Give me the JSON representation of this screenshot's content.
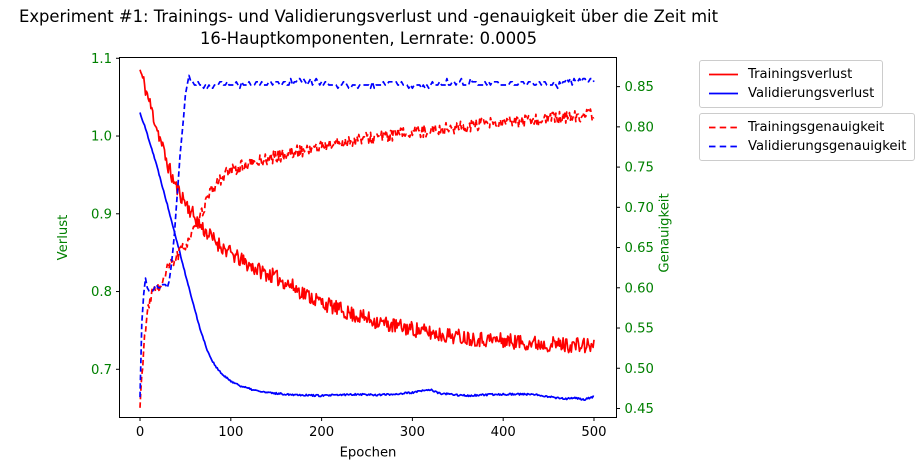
{
  "title": {
    "line1": "Experiment #1: Trainings- und Validierungsverlust und -genauigkeit über die Zeit mit",
    "line2": "16-Hauptkomponenten, Lernrate: 0.0005"
  },
  "colors": {
    "red": "#ff0000",
    "blue": "#0000ff",
    "axis_label_green": "#008000",
    "spine_black": "#000000",
    "legend_border_gray": "#cccccc"
  },
  "legends": [
    {
      "name": "loss-legend",
      "entries": [
        {
          "label": "Trainingsverlust",
          "color": "#ff0000",
          "dash": false
        },
        {
          "label": "Validierungsverlust",
          "color": "#0000ff",
          "dash": false
        }
      ]
    },
    {
      "name": "accuracy-legend",
      "entries": [
        {
          "label": "Trainingsgenauigkeit",
          "color": "#ff0000",
          "dash": true
        },
        {
          "label": "Validierungsgenauigkeit",
          "color": "#0000ff",
          "dash": true
        }
      ]
    }
  ],
  "chart_data": {
    "type": "line",
    "title": "Experiment #1: Trainings- und Validierungsverlust und -genauigkeit über die Zeit mit 16-Hauptkomponenten, Lernrate: 0.0005",
    "xlabel": "Epochen",
    "ylabel_left": "Verlust",
    "ylabel_right": "Genauigkeit",
    "legend_position": "outside upper right",
    "grid": false,
    "xlim": [
      -22.6,
      524.8
    ],
    "ylim_left": [
      0.638,
      1.101
    ],
    "ylim_right": [
      0.4388,
      0.8862
    ],
    "x_ticks": {
      "values": [
        0,
        100,
        200,
        300,
        400,
        500
      ],
      "labels": [
        "0",
        "100",
        "200",
        "300",
        "400",
        "500"
      ]
    },
    "y_ticks_left": {
      "values": [
        0.7,
        0.8,
        0.9,
        1.0,
        1.1
      ],
      "labels": [
        "0.7",
        "0.8",
        "0.9",
        "1.0",
        "1.1"
      ]
    },
    "y_ticks_right": {
      "values": [
        0.45,
        0.5,
        0.55,
        0.6,
        0.65,
        0.7,
        0.75,
        0.8,
        0.85
      ],
      "labels": [
        "0.45",
        "0.50",
        "0.55",
        "0.60",
        "0.65",
        "0.70",
        "0.75",
        "0.80",
        "0.85"
      ]
    },
    "series": [
      {
        "name": "Trainingsverlust",
        "axis": "left",
        "color": "#ff0000",
        "dash": false,
        "noise": 0.01,
        "seed": 11,
        "step": 1,
        "anchors": [
          [
            0,
            1.085
          ],
          [
            5,
            1.065
          ],
          [
            10,
            1.045
          ],
          [
            15,
            1.025
          ],
          [
            20,
            1.005
          ],
          [
            25,
            0.985
          ],
          [
            30,
            0.965
          ],
          [
            35,
            0.948
          ],
          [
            40,
            0.934
          ],
          [
            45,
            0.924
          ],
          [
            50,
            0.915
          ],
          [
            55,
            0.905
          ],
          [
            60,
            0.896
          ],
          [
            65,
            0.888
          ],
          [
            70,
            0.88
          ],
          [
            75,
            0.874
          ],
          [
            80,
            0.868
          ],
          [
            85,
            0.863
          ],
          [
            90,
            0.858
          ],
          [
            95,
            0.853
          ],
          [
            100,
            0.849
          ],
          [
            110,
            0.841
          ],
          [
            120,
            0.834
          ],
          [
            130,
            0.828
          ],
          [
            140,
            0.823
          ],
          [
            150,
            0.818
          ],
          [
            160,
            0.812
          ],
          [
            170,
            0.805
          ],
          [
            180,
            0.798
          ],
          [
            190,
            0.792
          ],
          [
            200,
            0.786
          ],
          [
            215,
            0.779
          ],
          [
            230,
            0.772
          ],
          [
            245,
            0.767
          ],
          [
            260,
            0.762
          ],
          [
            275,
            0.757
          ],
          [
            290,
            0.754
          ],
          [
            300,
            0.752
          ],
          [
            315,
            0.748
          ],
          [
            330,
            0.745
          ],
          [
            345,
            0.743
          ],
          [
            360,
            0.741
          ],
          [
            375,
            0.739
          ],
          [
            390,
            0.738
          ],
          [
            400,
            0.737
          ],
          [
            420,
            0.735
          ],
          [
            440,
            0.733
          ],
          [
            460,
            0.732
          ],
          [
            480,
            0.731
          ],
          [
            500,
            0.73
          ]
        ]
      },
      {
        "name": "Validierungsverlust",
        "axis": "left",
        "color": "#0000ff",
        "dash": false,
        "noise": 0.0012,
        "seed": 22,
        "step": 1,
        "anchors": [
          [
            0,
            1.03
          ],
          [
            5,
            1.013
          ],
          [
            10,
            0.995
          ],
          [
            15,
            0.976
          ],
          [
            20,
            0.955
          ],
          [
            25,
            0.934
          ],
          [
            30,
            0.912
          ],
          [
            35,
            0.89
          ],
          [
            40,
            0.868
          ],
          [
            45,
            0.845
          ],
          [
            50,
            0.822
          ],
          [
            55,
            0.8
          ],
          [
            60,
            0.778
          ],
          [
            65,
            0.757
          ],
          [
            70,
            0.738
          ],
          [
            75,
            0.722
          ],
          [
            80,
            0.71
          ],
          [
            85,
            0.701
          ],
          [
            90,
            0.694
          ],
          [
            95,
            0.689
          ],
          [
            100,
            0.685
          ],
          [
            110,
            0.679
          ],
          [
            120,
            0.675
          ],
          [
            130,
            0.672
          ],
          [
            140,
            0.67
          ],
          [
            150,
            0.669
          ],
          [
            160,
            0.668
          ],
          [
            180,
            0.667
          ],
          [
            200,
            0.666
          ],
          [
            220,
            0.667
          ],
          [
            240,
            0.668
          ],
          [
            260,
            0.667
          ],
          [
            280,
            0.668
          ],
          [
            300,
            0.67
          ],
          [
            310,
            0.672
          ],
          [
            320,
            0.674
          ],
          [
            325,
            0.671
          ],
          [
            330,
            0.669
          ],
          [
            340,
            0.668
          ],
          [
            360,
            0.666
          ],
          [
            380,
            0.667
          ],
          [
            400,
            0.668
          ],
          [
            420,
            0.668
          ],
          [
            440,
            0.667
          ],
          [
            455,
            0.664
          ],
          [
            470,
            0.662
          ],
          [
            480,
            0.663
          ],
          [
            490,
            0.661
          ],
          [
            500,
            0.665
          ]
        ]
      },
      {
        "name": "Trainingsgenauigkeit",
        "axis": "right",
        "color": "#ff0000",
        "dash": true,
        "noise": 0.008,
        "seed": 33,
        "step": 1,
        "anchors": [
          [
            0,
            0.45
          ],
          [
            2,
            0.49
          ],
          [
            4,
            0.525
          ],
          [
            6,
            0.548
          ],
          [
            8,
            0.565
          ],
          [
            10,
            0.578
          ],
          [
            12,
            0.588
          ],
          [
            14,
            0.595
          ],
          [
            16,
            0.6
          ],
          [
            18,
            0.603
          ],
          [
            20,
            0.6
          ],
          [
            22,
            0.598
          ],
          [
            24,
            0.603
          ],
          [
            26,
            0.608
          ],
          [
            28,
            0.615
          ],
          [
            30,
            0.623
          ],
          [
            35,
            0.631
          ],
          [
            40,
            0.638
          ],
          [
            45,
            0.645
          ],
          [
            50,
            0.654
          ],
          [
            55,
            0.663
          ],
          [
            60,
            0.672
          ],
          [
            65,
            0.682
          ],
          [
            70,
            0.7
          ],
          [
            75,
            0.712
          ],
          [
            80,
            0.722
          ],
          [
            85,
            0.73
          ],
          [
            90,
            0.737
          ],
          [
            95,
            0.742
          ],
          [
            100,
            0.745
          ],
          [
            110,
            0.75
          ],
          [
            120,
            0.753
          ],
          [
            130,
            0.757
          ],
          [
            140,
            0.76
          ],
          [
            150,
            0.763
          ],
          [
            160,
            0.766
          ],
          [
            180,
            0.771
          ],
          [
            200,
            0.776
          ],
          [
            220,
            0.78
          ],
          [
            240,
            0.784
          ],
          [
            260,
            0.787
          ],
          [
            280,
            0.79
          ],
          [
            300,
            0.793
          ],
          [
            320,
            0.796
          ],
          [
            340,
            0.798
          ],
          [
            360,
            0.8
          ],
          [
            380,
            0.803
          ],
          [
            400,
            0.805
          ],
          [
            420,
            0.807
          ],
          [
            440,
            0.809
          ],
          [
            460,
            0.811
          ],
          [
            480,
            0.813
          ],
          [
            500,
            0.815
          ]
        ]
      },
      {
        "name": "Validierungsgenauigkeit",
        "axis": "right",
        "color": "#0000ff",
        "dash": true,
        "noise": 0.004,
        "seed": 44,
        "step": 2,
        "quantize": 0.004,
        "anchors": [
          [
            0,
            0.462
          ],
          [
            1,
            0.52
          ],
          [
            2,
            0.56
          ],
          [
            3,
            0.585
          ],
          [
            4,
            0.597
          ],
          [
            6,
            0.61
          ],
          [
            8,
            0.6
          ],
          [
            10,
            0.598
          ],
          [
            12,
            0.597
          ],
          [
            14,
            0.598
          ],
          [
            16,
            0.6
          ],
          [
            18,
            0.601
          ],
          [
            20,
            0.602
          ],
          [
            22,
            0.603
          ],
          [
            24,
            0.601
          ],
          [
            26,
            0.6
          ],
          [
            28,
            0.601
          ],
          [
            30,
            0.603
          ],
          [
            32,
            0.61
          ],
          [
            34,
            0.625
          ],
          [
            36,
            0.645
          ],
          [
            38,
            0.668
          ],
          [
            40,
            0.7
          ],
          [
            42,
            0.732
          ],
          [
            44,
            0.762
          ],
          [
            46,
            0.79
          ],
          [
            48,
            0.815
          ],
          [
            50,
            0.838
          ],
          [
            52,
            0.852
          ],
          [
            54,
            0.86
          ],
          [
            56,
            0.858
          ],
          [
            58,
            0.855
          ],
          [
            60,
            0.853
          ],
          [
            65,
            0.855
          ],
          [
            70,
            0.85
          ],
          [
            80,
            0.851
          ],
          [
            90,
            0.853
          ],
          [
            100,
            0.852
          ],
          [
            120,
            0.855
          ],
          [
            140,
            0.852
          ],
          [
            160,
            0.856
          ],
          [
            180,
            0.857
          ],
          [
            200,
            0.855
          ],
          [
            220,
            0.852
          ],
          [
            240,
            0.85
          ],
          [
            260,
            0.853
          ],
          [
            280,
            0.855
          ],
          [
            300,
            0.848
          ],
          [
            320,
            0.852
          ],
          [
            340,
            0.855
          ],
          [
            360,
            0.856
          ],
          [
            380,
            0.854
          ],
          [
            400,
            0.852
          ],
          [
            420,
            0.855
          ],
          [
            440,
            0.856
          ],
          [
            460,
            0.853
          ],
          [
            480,
            0.859
          ],
          [
            500,
            0.857
          ]
        ]
      }
    ]
  }
}
